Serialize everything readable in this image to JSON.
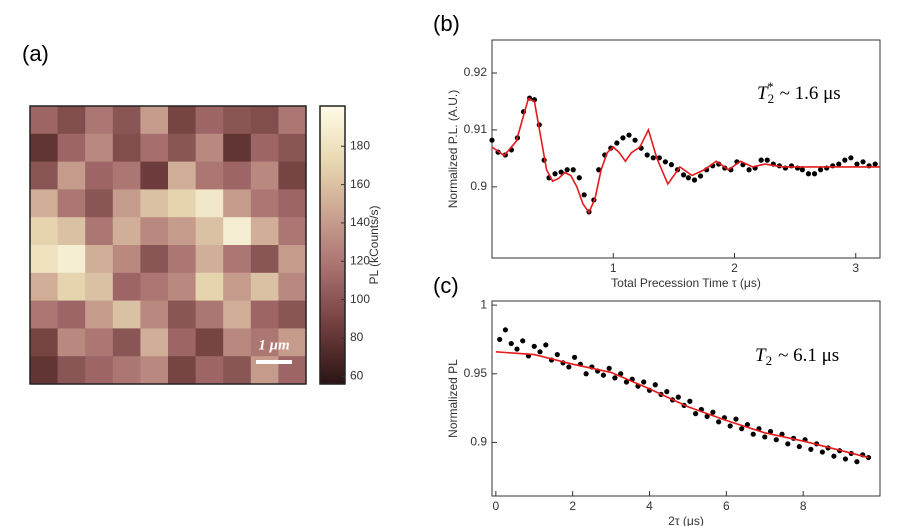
{
  "chart_data": [
    {
      "type": "heatmap",
      "panel_label": "(a)",
      "scale_bar_label": "1 μm",
      "colorbar_label": "PL (kCounts/s)",
      "colormap": [
        "#2b1414",
        "#6e3c3c",
        "#a56c6c",
        "#c9a090",
        "#e8d8b0",
        "#fffbe8"
      ],
      "clim": [
        56,
        201
      ],
      "cticks": [
        60,
        80,
        100,
        120,
        140,
        160,
        180
      ],
      "z": [
        [
          110,
          95,
          120,
          100,
          140,
          90,
          110,
          100,
          95,
          120
        ],
        [
          80,
          110,
          130,
          95,
          115,
          100,
          130,
          80,
          110,
          100
        ],
        [
          100,
          140,
          110,
          120,
          85,
          150,
          120,
          110,
          130,
          90
        ],
        [
          150,
          120,
          100,
          140,
          160,
          170,
          185,
          140,
          120,
          110
        ],
        [
          170,
          160,
          120,
          150,
          130,
          140,
          160,
          190,
          150,
          120
        ],
        [
          180,
          190,
          150,
          130,
          100,
          120,
          150,
          120,
          100,
          140
        ],
        [
          150,
          170,
          160,
          110,
          120,
          130,
          170,
          140,
          160,
          130
        ],
        [
          120,
          110,
          140,
          160,
          130,
          100,
          120,
          150,
          110,
          100
        ],
        [
          90,
          130,
          120,
          100,
          150,
          110,
          90,
          130,
          120,
          140
        ],
        [
          80,
          100,
          110,
          120,
          130,
          90,
          110,
          100,
          140,
          110
        ]
      ]
    },
    {
      "type": "scatter",
      "panel_label": "(b)",
      "x_label": "Total Precession Time τ (μs)",
      "y_label": "Normalized P.L. (A.U.)",
      "annotation": {
        "symbol": "T",
        "subscript": "2",
        "superscript": "*",
        "text": "~ 1.6 μs"
      },
      "xlim": [
        0,
        3.2
      ],
      "ylim": [
        0.8875,
        0.9258
      ],
      "xticks": [
        1,
        2,
        3
      ],
      "yticks": [
        0.9,
        0.91,
        0.92
      ],
      "series": [
        {
          "type": "scatter",
          "color": "#000000",
          "x": [
            0.0,
            0.05,
            0.11,
            0.16,
            0.21,
            0.26,
            0.31,
            0.35,
            0.39,
            0.43,
            0.47,
            0.52,
            0.57,
            0.62,
            0.67,
            0.72,
            0.76,
            0.8,
            0.84,
            0.88,
            0.93,
            0.98,
            1.03,
            1.08,
            1.13,
            1.18,
            1.23,
            1.28,
            1.33,
            1.38,
            1.43,
            1.48,
            1.53,
            1.58,
            1.62,
            1.67,
            1.72,
            1.77,
            1.82,
            1.87,
            1.92,
            1.97,
            2.02,
            2.07,
            2.12,
            2.17,
            2.22,
            2.27,
            2.32,
            2.37,
            2.42,
            2.47,
            2.52,
            2.56,
            2.61,
            2.66,
            2.71,
            2.76,
            2.81,
            2.86,
            2.91,
            2.96,
            3.01,
            3.06,
            3.11,
            3.16
          ],
          "values": [
            0.9082,
            0.9061,
            0.9056,
            0.9065,
            0.9086,
            0.9132,
            0.9156,
            0.9153,
            0.9109,
            0.9047,
            0.9016,
            0.9023,
            0.9026,
            0.903,
            0.903,
            0.9016,
            0.8986,
            0.8956,
            0.8977,
            0.903,
            0.9056,
            0.9068,
            0.9077,
            0.9086,
            0.9091,
            0.9082,
            0.9068,
            0.9056,
            0.9051,
            0.9051,
            0.9044,
            0.9039,
            0.903,
            0.9021,
            0.9016,
            0.9012,
            0.9019,
            0.903,
            0.9037,
            0.904,
            0.9033,
            0.903,
            0.9044,
            0.9039,
            0.903,
            0.9033,
            0.9047,
            0.9047,
            0.904,
            0.9037,
            0.9033,
            0.9037,
            0.9033,
            0.903,
            0.9023,
            0.9023,
            0.903,
            0.9033,
            0.9037,
            0.904,
            0.9047,
            0.9051,
            0.904,
            0.9044,
            0.9037,
            0.904
          ]
        },
        {
          "type": "line",
          "color": "#e41a1c",
          "x": [
            0.0,
            0.1,
            0.2,
            0.3,
            0.35,
            0.4,
            0.45,
            0.5,
            0.55,
            0.6,
            0.65,
            0.7,
            0.75,
            0.8,
            0.85,
            0.9,
            0.95,
            1.0,
            1.05,
            1.1,
            1.15,
            1.22,
            1.29,
            1.36,
            1.45,
            1.55,
            1.65,
            1.75,
            1.85,
            1.95,
            2.05,
            2.15,
            2.25,
            2.4,
            2.6,
            2.8,
            3.0,
            3.2
          ],
          "values": [
            0.907,
            0.9055,
            0.908,
            0.9155,
            0.915,
            0.909,
            0.903,
            0.901,
            0.9015,
            0.9025,
            0.902,
            0.9,
            0.897,
            0.8955,
            0.898,
            0.903,
            0.906,
            0.907,
            0.906,
            0.9045,
            0.906,
            0.907,
            0.91,
            0.905,
            0.9005,
            0.9035,
            0.902,
            0.903,
            0.9045,
            0.903,
            0.9045,
            0.9035,
            0.904,
            0.9035,
            0.9035,
            0.9035,
            0.9035,
            0.9035
          ]
        }
      ]
    },
    {
      "type": "scatter",
      "panel_label": "(c)",
      "x_label": "2τ (μs)",
      "y_label": "Normalized PL",
      "annotation": {
        "symbol": "T",
        "subscript": "2",
        "text": "~ 6.1 μs"
      },
      "xlim": [
        -0.1,
        10
      ],
      "ylim": [
        0.861,
        1.003
      ],
      "xticks": [
        0,
        2,
        4,
        6,
        8
      ],
      "yticks": [
        0.9,
        0.95,
        1
      ],
      "series": [
        {
          "type": "scatter",
          "color": "#000000",
          "x": [
            0.1,
            0.25,
            0.4,
            0.55,
            0.7,
            0.85,
            1.0,
            1.15,
            1.3,
            1.45,
            1.6,
            1.75,
            1.9,
            2.05,
            2.2,
            2.35,
            2.5,
            2.65,
            2.8,
            2.95,
            3.1,
            3.25,
            3.4,
            3.55,
            3.7,
            3.85,
            4.0,
            4.15,
            4.3,
            4.45,
            4.6,
            4.75,
            4.9,
            5.05,
            5.2,
            5.35,
            5.5,
            5.65,
            5.8,
            5.95,
            6.1,
            6.25,
            6.4,
            6.55,
            6.7,
            6.85,
            7.0,
            7.15,
            7.3,
            7.45,
            7.6,
            7.75,
            7.9,
            8.05,
            8.2,
            8.35,
            8.5,
            8.65,
            8.8,
            8.95,
            9.1,
            9.25,
            9.4,
            9.55,
            9.7
          ],
          "values": [
            0.975,
            0.982,
            0.972,
            0.968,
            0.974,
            0.963,
            0.97,
            0.966,
            0.971,
            0.96,
            0.964,
            0.958,
            0.955,
            0.962,
            0.957,
            0.95,
            0.955,
            0.952,
            0.949,
            0.954,
            0.947,
            0.95,
            0.944,
            0.946,
            0.941,
            0.944,
            0.938,
            0.942,
            0.935,
            0.937,
            0.931,
            0.933,
            0.927,
            0.93,
            0.921,
            0.924,
            0.919,
            0.922,
            0.915,
            0.918,
            0.912,
            0.917,
            0.91,
            0.913,
            0.906,
            0.91,
            0.904,
            0.908,
            0.902,
            0.906,
            0.899,
            0.903,
            0.897,
            0.902,
            0.895,
            0.899,
            0.893,
            0.896,
            0.89,
            0.894,
            0.888,
            0.892,
            0.886,
            0.891,
            0.889
          ]
        },
        {
          "type": "line",
          "color": "#e41a1c",
          "x": [
            0,
            1,
            2,
            3,
            4,
            5,
            6,
            7,
            8,
            9,
            9.7
          ],
          "values": [
            0.966,
            0.964,
            0.957,
            0.951,
            0.939,
            0.926,
            0.916,
            0.907,
            0.901,
            0.894,
            0.889
          ]
        }
      ]
    }
  ]
}
